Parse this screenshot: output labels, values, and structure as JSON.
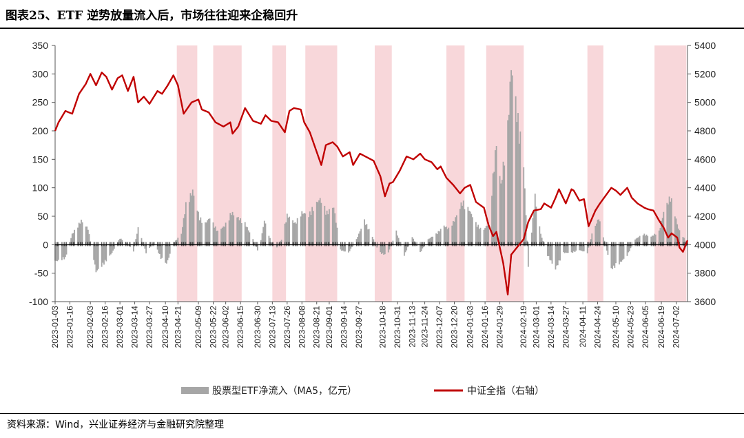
{
  "title": "图表25、ETF 逆势放量流入后，市场往往迎来企稳回升",
  "source": "资料来源：Wind，兴业证券经济与金融研究院整理",
  "colors": {
    "bar": "#a6a6a6",
    "line": "#c00000",
    "shade": "#f8d7da",
    "zero": "#000000"
  },
  "chart_data": {
    "type": "bar+line",
    "title": "",
    "xlabel": "",
    "ylabel": "",
    "x_range": [
      "2023-01-03",
      "2024-07-12"
    ],
    "x_ticks": [
      "2023-01-03",
      "2023-01-16",
      "2023-02-03",
      "2023-02-16",
      "2023-03-01",
      "2023-03-14",
      "2023-03-27",
      "2023-04-10",
      "2023-04-21",
      "2023-05-09",
      "2023-05-22",
      "2023-06-02",
      "2023-06-15",
      "2023-06-30",
      "2023-07-13",
      "2023-07-26",
      "2023-08-08",
      "2023-08-21",
      "2023-09-01",
      "2023-09-14",
      "2023-09-27",
      "2023-10-18",
      "2023-10-31",
      "2023-11-13",
      "2023-11-24",
      "2023-12-07",
      "2023-12-20",
      "2024-01-03",
      "2024-01-16",
      "2024-01-29",
      "2024-02-19",
      "2024-03-01",
      "2024-03-14",
      "2024-03-27",
      "2024-04-11",
      "2024-04-24",
      "2024-05-10",
      "2024-05-23",
      "2024-06-05",
      "2024-06-19",
      "2024-07-02"
    ],
    "y_left": {
      "min": -100,
      "max": 350,
      "ticks": [
        -100,
        -50,
        0,
        50,
        100,
        150,
        200,
        250,
        300,
        350
      ]
    },
    "y_right": {
      "min": 3600,
      "max": 5400,
      "ticks": [
        3600,
        3800,
        4000,
        4200,
        4400,
        4600,
        4800,
        5000,
        5200,
        5400
      ]
    },
    "shaded_periods": [
      [
        "2023-04-20",
        "2023-05-08"
      ],
      [
        "2023-05-22",
        "2023-06-16"
      ],
      [
        "2023-07-13",
        "2023-07-25"
      ],
      [
        "2023-08-11",
        "2023-09-08"
      ],
      [
        "2023-10-11",
        "2023-10-26"
      ],
      [
        "2023-12-13",
        "2023-12-29"
      ],
      [
        "2024-01-17",
        "2024-02-19"
      ],
      [
        "2024-04-15",
        "2024-04-29"
      ],
      [
        "2024-06-13",
        "2024-07-11"
      ]
    ],
    "legend_position": "bottom",
    "series": [
      {
        "name": "股票型ETF净流入（MA5，亿元）",
        "type": "bar",
        "axis": "left",
        "points": [
          [
            "2023-01-05",
            -30
          ],
          [
            "2023-01-12",
            -25
          ],
          [
            "2023-01-18",
            20
          ],
          [
            "2023-01-26",
            45
          ],
          [
            "2023-02-01",
            30
          ],
          [
            "2023-02-08",
            -50
          ],
          [
            "2023-02-15",
            -35
          ],
          [
            "2023-02-22",
            -15
          ],
          [
            "2023-03-01",
            12
          ],
          [
            "2023-03-06",
            5
          ],
          [
            "2023-03-13",
            -12
          ],
          [
            "2023-03-17",
            32
          ],
          [
            "2023-03-24",
            -15
          ],
          [
            "2023-03-31",
            5
          ],
          [
            "2023-04-06",
            -25
          ],
          [
            "2023-04-11",
            -35
          ],
          [
            "2023-04-18",
            5
          ],
          [
            "2023-04-24",
            20
          ],
          [
            "2023-04-28",
            75
          ],
          [
            "2023-05-04",
            100
          ],
          [
            "2023-05-10",
            50
          ],
          [
            "2023-05-15",
            40
          ],
          [
            "2023-05-19",
            50
          ],
          [
            "2023-05-26",
            25
          ],
          [
            "2023-06-01",
            35
          ],
          [
            "2023-06-07",
            60
          ],
          [
            "2023-06-13",
            50
          ],
          [
            "2023-06-19",
            40
          ],
          [
            "2023-06-26",
            10
          ],
          [
            "2023-07-01",
            -15
          ],
          [
            "2023-07-06",
            45
          ],
          [
            "2023-07-12",
            5
          ],
          [
            "2023-07-17",
            -5
          ],
          [
            "2023-07-21",
            10
          ],
          [
            "2023-07-26",
            55
          ],
          [
            "2023-08-02",
            40
          ],
          [
            "2023-08-08",
            60
          ],
          [
            "2023-08-14",
            55
          ],
          [
            "2023-08-18",
            70
          ],
          [
            "2023-08-24",
            85
          ],
          [
            "2023-08-30",
            60
          ],
          [
            "2023-09-05",
            70
          ],
          [
            "2023-09-11",
            -10
          ],
          [
            "2023-09-18",
            -15
          ],
          [
            "2023-09-25",
            10
          ],
          [
            "2023-10-02",
            45
          ],
          [
            "2023-10-09",
            15
          ],
          [
            "2023-10-15",
            -15
          ],
          [
            "2023-10-22",
            -20
          ],
          [
            "2023-10-30",
            25
          ],
          [
            "2023-11-06",
            -20
          ],
          [
            "2023-11-13",
            15
          ],
          [
            "2023-11-20",
            -15
          ],
          [
            "2023-11-27",
            10
          ],
          [
            "2023-12-04",
            20
          ],
          [
            "2023-12-11",
            35
          ],
          [
            "2023-12-15",
            30
          ],
          [
            "2023-12-20",
            45
          ],
          [
            "2023-12-27",
            80
          ],
          [
            "2024-01-02",
            65
          ],
          [
            "2024-01-08",
            40
          ],
          [
            "2024-01-14",
            25
          ],
          [
            "2024-01-19",
            40
          ],
          [
            "2024-01-26",
            190
          ],
          [
            "2024-01-30",
            110
          ],
          [
            "2024-02-05",
            220
          ],
          [
            "2024-02-08",
            330
          ],
          [
            "2024-02-19",
            150
          ],
          [
            "2024-02-23",
            -40
          ],
          [
            "2024-02-29",
            90
          ],
          [
            "2024-03-05",
            20
          ],
          [
            "2024-03-11",
            -20
          ],
          [
            "2024-03-18",
            -45
          ],
          [
            "2024-03-25",
            -15
          ],
          [
            "2024-04-01",
            -15
          ],
          [
            "2024-04-08",
            -10
          ],
          [
            "2024-04-15",
            -15
          ],
          [
            "2024-04-19",
            20
          ],
          [
            "2024-04-25",
            50
          ],
          [
            "2024-05-06",
            -45
          ],
          [
            "2024-05-13",
            -35
          ],
          [
            "2024-05-20",
            -20
          ],
          [
            "2024-05-27",
            10
          ],
          [
            "2024-06-03",
            20
          ],
          [
            "2024-06-10",
            15
          ],
          [
            "2024-06-17",
            25
          ],
          [
            "2024-06-21",
            60
          ],
          [
            "2024-06-27",
            90
          ],
          [
            "2024-07-04",
            30
          ],
          [
            "2024-07-11",
            5
          ]
        ]
      },
      {
        "name": "中证全指（右轴）",
        "type": "line",
        "axis": "right",
        "points": [
          [
            "2023-01-03",
            4800
          ],
          [
            "2023-01-06",
            4860
          ],
          [
            "2023-01-12",
            4940
          ],
          [
            "2023-01-18",
            4920
          ],
          [
            "2023-01-24",
            5060
          ],
          [
            "2023-01-30",
            5130
          ],
          [
            "2023-02-03",
            5200
          ],
          [
            "2023-02-08",
            5120
          ],
          [
            "2023-02-13",
            5210
          ],
          [
            "2023-02-17",
            5180
          ],
          [
            "2023-02-22",
            5090
          ],
          [
            "2023-02-27",
            5170
          ],
          [
            "2023-03-03",
            5190
          ],
          [
            "2023-03-08",
            5080
          ],
          [
            "2023-03-13",
            5180
          ],
          [
            "2023-03-17",
            5000
          ],
          [
            "2023-03-22",
            5040
          ],
          [
            "2023-03-27",
            4990
          ],
          [
            "2023-04-03",
            5080
          ],
          [
            "2023-04-07",
            5060
          ],
          [
            "2023-04-12",
            5120
          ],
          [
            "2023-04-17",
            5190
          ],
          [
            "2023-04-21",
            5120
          ],
          [
            "2023-04-26",
            4920
          ],
          [
            "2023-05-03",
            5000
          ],
          [
            "2023-05-09",
            5020
          ],
          [
            "2023-05-12",
            4950
          ],
          [
            "2023-05-18",
            4930
          ],
          [
            "2023-05-24",
            4860
          ],
          [
            "2023-05-31",
            4830
          ],
          [
            "2023-06-06",
            4860
          ],
          [
            "2023-06-08",
            4780
          ],
          [
            "2023-06-13",
            4830
          ],
          [
            "2023-06-19",
            4960
          ],
          [
            "2023-06-26",
            4870
          ],
          [
            "2023-07-03",
            4850
          ],
          [
            "2023-07-07",
            4910
          ],
          [
            "2023-07-12",
            4870
          ],
          [
            "2023-07-18",
            4860
          ],
          [
            "2023-07-24",
            4790
          ],
          [
            "2023-07-28",
            4940
          ],
          [
            "2023-08-01",
            4960
          ],
          [
            "2023-08-07",
            4950
          ],
          [
            "2023-08-10",
            4860
          ],
          [
            "2023-08-15",
            4790
          ],
          [
            "2023-08-18",
            4720
          ],
          [
            "2023-08-25",
            4560
          ],
          [
            "2023-08-29",
            4700
          ],
          [
            "2023-09-04",
            4720
          ],
          [
            "2023-09-08",
            4690
          ],
          [
            "2023-09-13",
            4620
          ],
          [
            "2023-09-19",
            4650
          ],
          [
            "2023-09-22",
            4560
          ],
          [
            "2023-09-28",
            4640
          ],
          [
            "2023-10-10",
            4590
          ],
          [
            "2023-10-16",
            4480
          ],
          [
            "2023-10-20",
            4340
          ],
          [
            "2023-10-24",
            4430
          ],
          [
            "2023-10-27",
            4440
          ],
          [
            "2023-11-02",
            4520
          ],
          [
            "2023-11-08",
            4620
          ],
          [
            "2023-11-14",
            4600
          ],
          [
            "2023-11-20",
            4640
          ],
          [
            "2023-11-24",
            4600
          ],
          [
            "2023-11-30",
            4580
          ],
          [
            "2023-12-05",
            4530
          ],
          [
            "2023-12-08",
            4550
          ],
          [
            "2023-12-13",
            4470
          ],
          [
            "2023-12-19",
            4420
          ],
          [
            "2023-12-25",
            4360
          ],
          [
            "2023-12-29",
            4400
          ],
          [
            "2024-01-03",
            4420
          ],
          [
            "2024-01-08",
            4300
          ],
          [
            "2024-01-15",
            4260
          ],
          [
            "2024-01-19",
            4140
          ],
          [
            "2024-01-23",
            4060
          ],
          [
            "2024-01-26",
            4090
          ],
          [
            "2024-02-01",
            3870
          ],
          [
            "2024-02-05",
            3650
          ],
          [
            "2024-02-08",
            3930
          ],
          [
            "2024-02-19",
            4040
          ],
          [
            "2024-02-23",
            4160
          ],
          [
            "2024-02-28",
            4240
          ],
          [
            "2024-03-05",
            4250
          ],
          [
            "2024-03-08",
            4290
          ],
          [
            "2024-03-14",
            4260
          ],
          [
            "2024-03-18",
            4330
          ],
          [
            "2024-03-21",
            4390
          ],
          [
            "2024-03-27",
            4290
          ],
          [
            "2024-04-01",
            4390
          ],
          [
            "2024-04-03",
            4380
          ],
          [
            "2024-04-08",
            4310
          ],
          [
            "2024-04-12",
            4320
          ],
          [
            "2024-04-16",
            4130
          ],
          [
            "2024-04-22",
            4240
          ],
          [
            "2024-04-26",
            4290
          ],
          [
            "2024-05-06",
            4400
          ],
          [
            "2024-05-10",
            4380
          ],
          [
            "2024-05-14",
            4350
          ],
          [
            "2024-05-20",
            4400
          ],
          [
            "2024-05-24",
            4330
          ],
          [
            "2024-05-29",
            4290
          ],
          [
            "2024-06-04",
            4260
          ],
          [
            "2024-06-07",
            4250
          ],
          [
            "2024-06-12",
            4240
          ],
          [
            "2024-06-17",
            4170
          ],
          [
            "2024-06-21",
            4120
          ],
          [
            "2024-06-25",
            4050
          ],
          [
            "2024-06-28",
            4080
          ],
          [
            "2024-07-03",
            4050
          ],
          [
            "2024-07-05",
            3980
          ],
          [
            "2024-07-08",
            3950
          ],
          [
            "2024-07-12",
            4030
          ]
        ]
      }
    ]
  }
}
